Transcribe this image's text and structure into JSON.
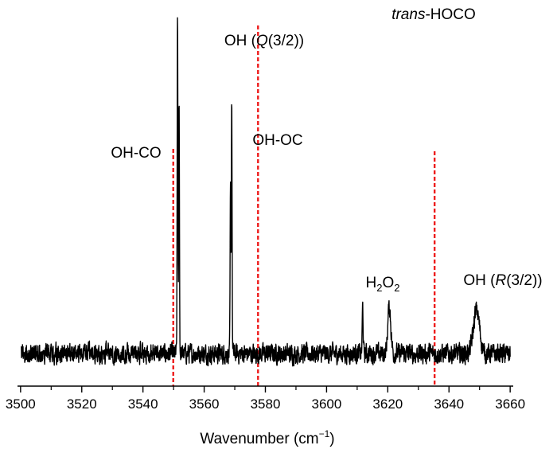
{
  "chart_data": {
    "type": "line",
    "xlabel": "Wavenumber",
    "xlabel_unit_base": "cm",
    "xlabel_unit_sup": "−1",
    "ylabel": "",
    "xlim": [
      3499,
      3661
    ],
    "ylim": [
      -0.09,
      0.98
    ],
    "grid": false,
    "legend": "none",
    "x_ticks": [
      3500,
      3520,
      3540,
      3560,
      3580,
      3600,
      3620,
      3640,
      3660
    ],
    "x_tick_labels": [
      "3500",
      "3520",
      "3540",
      "3560",
      "3580",
      "3600",
      "3620",
      "3640",
      "3660"
    ],
    "noise_amplitude": 0.03,
    "peaks": [
      {
        "center": 3551.3,
        "height": 0.95,
        "width": 0.12
      },
      {
        "center": 3551.8,
        "height": 0.72,
        "width": 0.12
      },
      {
        "center": 3568.6,
        "height": 0.45,
        "width": 0.12
      },
      {
        "center": 3569.0,
        "height": 0.72,
        "width": 0.12
      },
      {
        "center": 3611.8,
        "height": 0.13,
        "width": 0.15
      },
      {
        "center": 3620.5,
        "height": 0.13,
        "width": 0.5
      },
      {
        "center": 3649.0,
        "height": 0.12,
        "width": 1.0
      }
    ],
    "reference_lines": [
      {
        "x": 3549.9,
        "color": "#ee1c1c"
      },
      {
        "x": 3577.6,
        "color": "#ee1c1c"
      },
      {
        "x": 3635.3,
        "color": "#ee1c1c"
      }
    ],
    "line_color": "#000000",
    "annotations": {
      "oh_co": "OH-CO",
      "oh_q_prefix": "OH (",
      "oh_q_italic": "Q",
      "oh_q_suffix": "(3/2))",
      "oh_oc": "OH-OC",
      "h2o2_h": "H",
      "h2o2_sub1": "2",
      "h2o2_o": "O",
      "h2o2_sub2": "2",
      "trans_italic": "trans",
      "trans_rest": "-HOCO",
      "oh_r_prefix": "OH (",
      "oh_r_italic": "R",
      "oh_r_suffix": "(3/2))"
    }
  }
}
